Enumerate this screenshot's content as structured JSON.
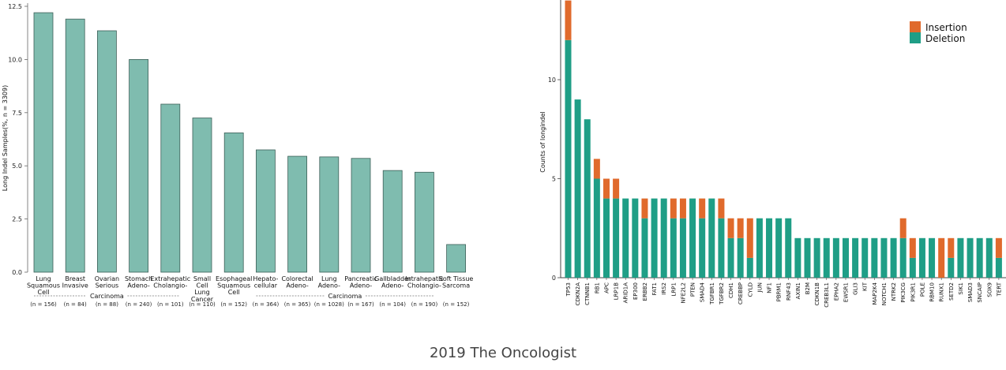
{
  "colors": {
    "teal": "#7fbcaf",
    "teal_stroke": "#3d5f58",
    "deletion": "#1f9e86",
    "insertion": "#e06a2c"
  },
  "caption": "2019 The Oncologist",
  "chart_data": [
    {
      "type": "bar",
      "ylabel": "Long Indel Samples(%, n = 3309)",
      "ylim": [
        0,
        12.5
      ],
      "yticks": [
        "0.0",
        "2.5",
        "5.0",
        "7.5",
        "10.0",
        "12.5"
      ],
      "categories": [
        {
          "lines": [
            "Lung",
            "Squamous",
            "Cell"
          ],
          "n": "(n = 156)"
        },
        {
          "lines": [
            "Breast",
            "Invasive"
          ],
          "n": "(n = 84)"
        },
        {
          "lines": [
            "Ovarian",
            "Serious"
          ],
          "n": "(n = 88)"
        },
        {
          "lines": [
            "Stomach",
            "Adeno-"
          ],
          "n": "(n = 240)"
        },
        {
          "lines": [
            "Extrahepatic",
            "Cholangio-"
          ],
          "n": "(n = 101)"
        },
        {
          "lines": [
            "Small",
            "Cell",
            "Lung",
            "Cancer"
          ],
          "n": "(n = 110)"
        },
        {
          "lines": [
            "Esophageal",
            "Squamous",
            "Cell"
          ],
          "n": "(n = 152)"
        },
        {
          "lines": [
            "Hepato-",
            "cellular"
          ],
          "n": "(n = 364)"
        },
        {
          "lines": [
            "Colorectal",
            "Adeno-"
          ],
          "n": "(n = 365)"
        },
        {
          "lines": [
            "Lung",
            "Adeno-"
          ],
          "n": "(n = 1028)"
        },
        {
          "lines": [
            "Pancreatic",
            "Adeno-"
          ],
          "n": "(n = 167)"
        },
        {
          "lines": [
            "Gallbladder",
            "Adeno-"
          ],
          "n": "(n = 104)"
        },
        {
          "lines": [
            "Intrahepatic",
            "Cholangio-"
          ],
          "n": "(n = 190)"
        },
        {
          "lines": [
            "Soft Tissue",
            "Sarcoma"
          ],
          "n": "(n = 152)"
        }
      ],
      "values": [
        12.2,
        11.9,
        11.35,
        10.0,
        7.9,
        7.25,
        6.55,
        5.75,
        5.45,
        5.42,
        5.35,
        4.78,
        4.7,
        1.3
      ],
      "group_label": "Carcinoma"
    },
    {
      "type": "bar",
      "stacked": true,
      "ylabel": "Counts of longindel",
      "ylim": [
        0,
        14
      ],
      "yticks": [
        "0",
        "5",
        "10"
      ],
      "legend": [
        "Insertion",
        "Deletion"
      ],
      "categories": [
        "TP53",
        "CDKN2A",
        "CTNNB1",
        "RB1",
        "APC",
        "LRP1B",
        "ARID1A",
        "EP300",
        "ERBB2",
        "FAT1",
        "IRS2",
        "LRP1",
        "NFE2L2",
        "PTEN",
        "SMAD4",
        "TGFBR1",
        "TGFBR2",
        "CDH1",
        "CREBBP",
        "CYLD",
        "JUN",
        "NF1",
        "PBRM1",
        "RNF43",
        "AXIN1",
        "B2M",
        "CDKN1B",
        "CREB3L1",
        "EPHA2",
        "EWSR1",
        "GLI3",
        "KIT",
        "MAP2K4",
        "NOTCH1",
        "NTRK2",
        "PIK3CG",
        "PIK3R1",
        "POLE",
        "RBM10",
        "RUNX1",
        "SETD2",
        "SIK1",
        "SMAD3",
        "SNCAIP",
        "SOX9",
        "TERT"
      ],
      "series": [
        {
          "name": "Deletion",
          "values": [
            12,
            9,
            8,
            5,
            4,
            4,
            4,
            4,
            3,
            4,
            4,
            3,
            3,
            4,
            3,
            4,
            3,
            2,
            2,
            1,
            3,
            3,
            3,
            3,
            2,
            2,
            2,
            2,
            2,
            2,
            2,
            2,
            2,
            2,
            2,
            2,
            1,
            2,
            2,
            0,
            1,
            2,
            2,
            2,
            2,
            1
          ]
        },
        {
          "name": "Insertion",
          "values": [
            2,
            0,
            0,
            1,
            1,
            1,
            0,
            0,
            1,
            0,
            0,
            1,
            1,
            0,
            1,
            0,
            1,
            1,
            1,
            2,
            0,
            0,
            0,
            0,
            0,
            0,
            0,
            0,
            0,
            0,
            0,
            0,
            0,
            0,
            0,
            1,
            1,
            0,
            0,
            2,
            1,
            0,
            0,
            0,
            0,
            1
          ]
        }
      ]
    }
  ]
}
